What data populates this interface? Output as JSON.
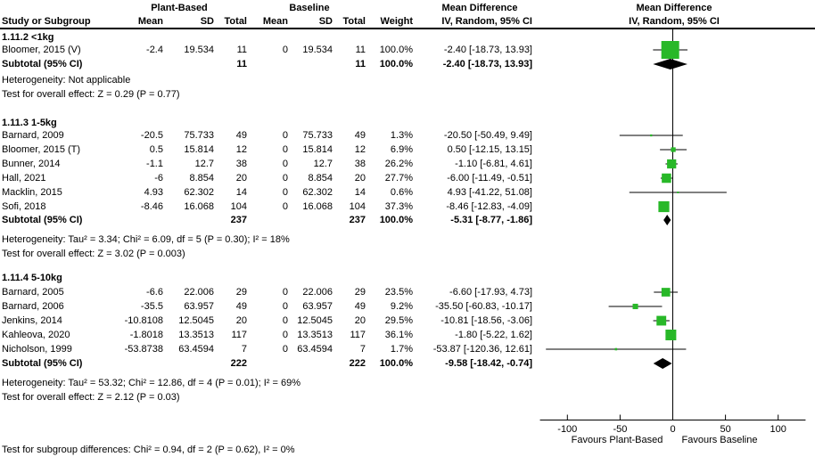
{
  "header": {
    "col_group_plant": "Plant-Based",
    "col_group_baseline": "Baseline",
    "col_group_md_text": "Mean Difference",
    "col_group_md_plot": "Mean Difference",
    "study": "Study or Subgroup",
    "mean_p": "Mean",
    "sd_p": "SD",
    "total_p": "Total",
    "mean_b": "Mean",
    "sd_b": "SD",
    "total_b": "Total",
    "weight": "Weight",
    "iv_text": "IV, Random, 95% CI",
    "iv_plot": "IV, Random, 95% CI"
  },
  "sections": [
    {
      "title": "1.11.2 <1kg",
      "rows": [
        {
          "study": "Bloomer, 2015 (V)",
          "mean_p": "-2.4",
          "sd_p": "19.534",
          "total_p": "11",
          "mean_b": "0",
          "sd_b": "19.534",
          "total_b": "11",
          "weight": "100.0%",
          "md": "-2.40 [-18.73, 13.93]"
        }
      ],
      "subtotal": {
        "label": "Subtotal (95% CI)",
        "total_p": "11",
        "total_b": "11",
        "weight": "100.0%",
        "md": "-2.40 [-18.73, 13.93]"
      },
      "heterogeneity": "Heterogeneity: Not applicable",
      "overall": "Test for overall effect: Z = 0.29 (P = 0.77)"
    },
    {
      "title": "1.11.3 1-5kg",
      "rows": [
        {
          "study": "Barnard, 2009",
          "mean_p": "-20.5",
          "sd_p": "75.733",
          "total_p": "49",
          "mean_b": "0",
          "sd_b": "75.733",
          "total_b": "49",
          "weight": "1.3%",
          "md": "-20.50 [-50.49, 9.49]"
        },
        {
          "study": "Bloomer, 2015 (T)",
          "mean_p": "0.5",
          "sd_p": "15.814",
          "total_p": "12",
          "mean_b": "0",
          "sd_b": "15.814",
          "total_b": "12",
          "weight": "6.9%",
          "md": "0.50 [-12.15, 13.15]"
        },
        {
          "study": "Bunner, 2014",
          "mean_p": "-1.1",
          "sd_p": "12.7",
          "total_p": "38",
          "mean_b": "0",
          "sd_b": "12.7",
          "total_b": "38",
          "weight": "26.2%",
          "md": "-1.10 [-6.81, 4.61]"
        },
        {
          "study": "Hall, 2021",
          "mean_p": "-6",
          "sd_p": "8.854",
          "total_p": "20",
          "mean_b": "0",
          "sd_b": "8.854",
          "total_b": "20",
          "weight": "27.7%",
          "md": "-6.00 [-11.49, -0.51]"
        },
        {
          "study": "Macklin, 2015",
          "mean_p": "4.93",
          "sd_p": "62.302",
          "total_p": "14",
          "mean_b": "0",
          "sd_b": "62.302",
          "total_b": "14",
          "weight": "0.6%",
          "md": "4.93 [-41.22, 51.08]"
        },
        {
          "study": "Sofi, 2018",
          "mean_p": "-8.46",
          "sd_p": "16.068",
          "total_p": "104",
          "mean_b": "0",
          "sd_b": "16.068",
          "total_b": "104",
          "weight": "37.3%",
          "md": "-8.46 [-12.83, -4.09]"
        }
      ],
      "subtotal": {
        "label": "Subtotal (95% CI)",
        "total_p": "237",
        "total_b": "237",
        "weight": "100.0%",
        "md": "-5.31 [-8.77, -1.86]"
      },
      "heterogeneity": "Heterogeneity: Tau² = 3.34; Chi² = 6.09, df = 5 (P = 0.30); I² = 18%",
      "overall": "Test for overall effect: Z = 3.02 (P = 0.003)"
    },
    {
      "title": "1.11.4 5-10kg",
      "rows": [
        {
          "study": "Barnard, 2005",
          "mean_p": "-6.6",
          "sd_p": "22.006",
          "total_p": "29",
          "mean_b": "0",
          "sd_b": "22.006",
          "total_b": "29",
          "weight": "23.5%",
          "md": "-6.60 [-17.93, 4.73]"
        },
        {
          "study": "Barnard, 2006",
          "mean_p": "-35.5",
          "sd_p": "63.957",
          "total_p": "49",
          "mean_b": "0",
          "sd_b": "63.957",
          "total_b": "49",
          "weight": "9.2%",
          "md": "-35.50 [-60.83, -10.17]"
        },
        {
          "study": "Jenkins, 2014",
          "mean_p": "-10.8108",
          "sd_p": "12.5045",
          "total_p": "20",
          "mean_b": "0",
          "sd_b": "12.5045",
          "total_b": "20",
          "weight": "29.5%",
          "md": "-10.81 [-18.56, -3.06]"
        },
        {
          "study": "Kahleova, 2020",
          "mean_p": "-1.8018",
          "sd_p": "13.3513",
          "total_p": "117",
          "mean_b": "0",
          "sd_b": "13.3513",
          "total_b": "117",
          "weight": "36.1%",
          "md": "-1.80 [-5.22, 1.62]"
        },
        {
          "study": "Nicholson, 1999",
          "mean_p": "-53.8738",
          "sd_p": "63.4594",
          "total_p": "7",
          "mean_b": "0",
          "sd_b": "63.4594",
          "total_b": "7",
          "weight": "1.7%",
          "md": "-53.87 [-120.36, 12.61]"
        }
      ],
      "subtotal": {
        "label": "Subtotal (95% CI)",
        "total_p": "222",
        "total_b": "222",
        "weight": "100.0%",
        "md": "-9.58 [-18.42, -0.74]"
      },
      "heterogeneity": "Heterogeneity: Tau² = 53.32; Chi² = 12.86, df = 4 (P = 0.01); I² = 69%",
      "overall": "Test for overall effect: Z = 2.12 (P = 0.03)"
    }
  ],
  "footer": {
    "subgroup_test": "Test for subgroup differences: Chi² = 0.94, df = 2 (P = 0.62), I² = 0%"
  },
  "axis": {
    "favours_left": "Favours Plant-Based",
    "favours_right": "Favours Baseline"
  },
  "colors": {
    "square": "#28B828",
    "diamond": "#000000",
    "line": "#000000",
    "text": "#000000"
  },
  "chart_data": {
    "type": "forest",
    "effect_measure": "Mean Difference, IV, Random, 95% CI",
    "axis": {
      "ticks": [
        -100,
        -50,
        0,
        50,
        100
      ],
      "min": -126,
      "max": 126,
      "label_left": "Favours Plant-Based",
      "label_right": "Favours Baseline"
    },
    "subgroups": [
      {
        "name": "1.11.2 <1kg",
        "studies": [
          {
            "label": "Bloomer, 2015 (V)",
            "md": -2.4,
            "ci_low": -18.73,
            "ci_high": 13.93,
            "weight": 100.0
          }
        ],
        "subtotal": {
          "md": -2.4,
          "ci_low": -18.73,
          "ci_high": 13.93
        }
      },
      {
        "name": "1.11.3 1-5kg",
        "studies": [
          {
            "label": "Barnard, 2009",
            "md": -20.5,
            "ci_low": -50.49,
            "ci_high": 9.49,
            "weight": 1.3
          },
          {
            "label": "Bloomer, 2015 (T)",
            "md": 0.5,
            "ci_low": -12.15,
            "ci_high": 13.15,
            "weight": 6.9
          },
          {
            "label": "Bunner, 2014",
            "md": -1.1,
            "ci_low": -6.81,
            "ci_high": 4.61,
            "weight": 26.2
          },
          {
            "label": "Hall, 2021",
            "md": -6.0,
            "ci_low": -11.49,
            "ci_high": -0.51,
            "weight": 27.7
          },
          {
            "label": "Macklin, 2015",
            "md": 4.93,
            "ci_low": -41.22,
            "ci_high": 51.08,
            "weight": 0.6
          },
          {
            "label": "Sofi, 2018",
            "md": -8.46,
            "ci_low": -12.83,
            "ci_high": -4.09,
            "weight": 37.3
          }
        ],
        "subtotal": {
          "md": -5.31,
          "ci_low": -8.77,
          "ci_high": -1.86
        }
      },
      {
        "name": "1.11.4 5-10kg",
        "studies": [
          {
            "label": "Barnard, 2005",
            "md": -6.6,
            "ci_low": -17.93,
            "ci_high": 4.73,
            "weight": 23.5
          },
          {
            "label": "Barnard, 2006",
            "md": -35.5,
            "ci_low": -60.83,
            "ci_high": -10.17,
            "weight": 9.2
          },
          {
            "label": "Jenkins, 2014",
            "md": -10.81,
            "ci_low": -18.56,
            "ci_high": -3.06,
            "weight": 29.5
          },
          {
            "label": "Kahleova, 2020",
            "md": -1.8,
            "ci_low": -5.22,
            "ci_high": 1.62,
            "weight": 36.1
          },
          {
            "label": "Nicholson, 1999",
            "md": -53.87,
            "ci_low": -120.36,
            "ci_high": 12.61,
            "weight": 1.7
          }
        ],
        "subtotal": {
          "md": -9.58,
          "ci_low": -18.42,
          "ci_high": -0.74
        }
      }
    ]
  }
}
